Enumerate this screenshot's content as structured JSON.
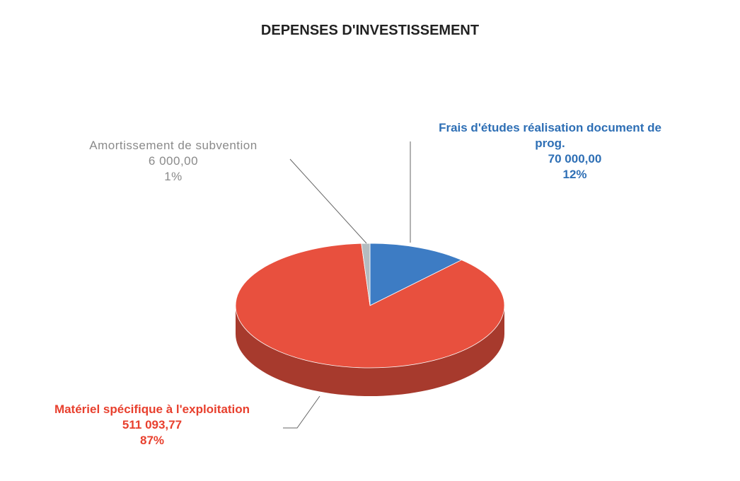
{
  "chart_data": {
    "type": "pie3d",
    "title": "DEPENSES D'INVESTISSEMENT",
    "categories": [
      "Frais d'études réalisation document de prog.",
      "Matériel spécifique à l'exploitation",
      "Amortissement de subvention"
    ],
    "values": [
      70000,
      511093.77,
      6000
    ],
    "value_labels": [
      "70 000,00",
      "511 093,77",
      "6 000,00"
    ],
    "percentages": [
      12,
      87,
      1
    ],
    "percentage_labels": [
      "12%",
      "87%",
      "1%"
    ],
    "colors": [
      "#3d7cc4",
      "#e8503e",
      "#b4bcc0"
    ],
    "label_colors": [
      "#2e6fb5",
      "#e8402e",
      "#8a8a8a"
    ]
  }
}
